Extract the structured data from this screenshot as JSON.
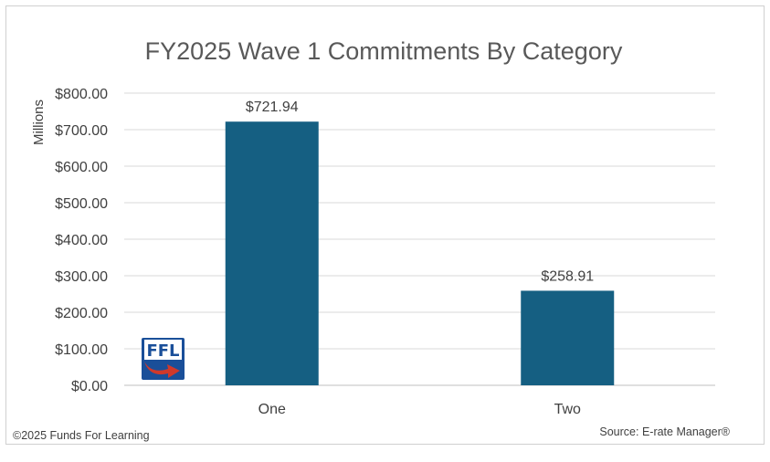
{
  "chart_data": {
    "type": "bar",
    "title": "FY2025 Wave 1 Commitments By Category",
    "ylabel": "Millions",
    "xlabel": "",
    "categories": [
      "One",
      "Two"
    ],
    "values": [
      721.94,
      258.91
    ],
    "data_labels": [
      "$721.94",
      "$258.91"
    ],
    "ylim": [
      0,
      800
    ],
    "yticks": [
      0,
      100,
      200,
      300,
      400,
      500,
      600,
      700,
      800
    ],
    "ytick_labels": [
      "$0.00",
      "$100.00",
      "$200.00",
      "$300.00",
      "$400.00",
      "$500.00",
      "$600.00",
      "$700.00",
      "$800.00"
    ],
    "grid": true,
    "bar_color": "#155f82"
  },
  "logo": {
    "text": "FFL",
    "bg_color": "#1a4f99",
    "arrow_color": "#d0392b"
  },
  "footer": {
    "copyright": "©2025 Funds For Learning",
    "source": "Source: E-rate Manager®"
  }
}
